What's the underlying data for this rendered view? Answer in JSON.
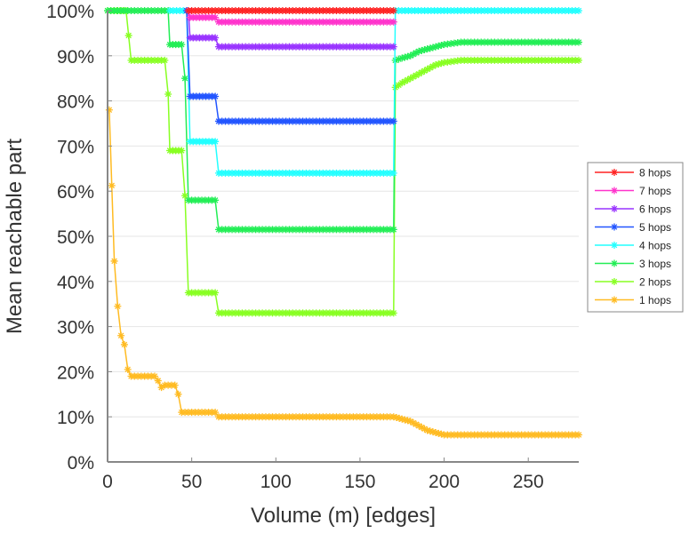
{
  "chart_data": {
    "type": "line",
    "title": "",
    "xlabel": "Volume (m) [edges]",
    "ylabel": "Mean reachable part",
    "xlim": [
      0,
      280
    ],
    "ylim": [
      0,
      100
    ],
    "x_ticks": [
      0,
      50,
      100,
      150,
      200,
      250
    ],
    "x_tick_labels": [
      "0",
      "50",
      "100",
      "150",
      "200",
      "250"
    ],
    "y_ticks": [
      0,
      10,
      20,
      30,
      40,
      50,
      60,
      70,
      80,
      90,
      100
    ],
    "y_tick_labels": [
      "0%",
      "10%",
      "20%",
      "30%",
      "40%",
      "50%",
      "60%",
      "70%",
      "80%",
      "90%",
      "100%"
    ],
    "grid": "horizontal",
    "legend_position": "right",
    "marker": "asterisk",
    "series": [
      {
        "name": "8 hops",
        "color": "#ff2222",
        "points": [
          [
            48,
            100
          ],
          [
            60,
            100
          ],
          [
            80,
            100
          ],
          [
            100,
            100
          ],
          [
            120,
            100
          ],
          [
            140,
            100
          ],
          [
            160,
            100
          ],
          [
            170,
            100
          ]
        ]
      },
      {
        "name": "7 hops",
        "color": "#ff33cc",
        "points": [
          [
            48,
            100
          ],
          [
            49,
            98.5
          ],
          [
            64,
            98.5
          ],
          [
            66,
            97.5
          ],
          [
            100,
            97.5
          ],
          [
            140,
            97.5
          ],
          [
            170,
            97.5
          ]
        ]
      },
      {
        "name": "6 hops",
        "color": "#9933ff",
        "points": [
          [
            48,
            100
          ],
          [
            49,
            94
          ],
          [
            64,
            94
          ],
          [
            66,
            92
          ],
          [
            100,
            92
          ],
          [
            140,
            92
          ],
          [
            170,
            92
          ]
        ]
      },
      {
        "name": "5 hops",
        "color": "#2255ff",
        "points": [
          [
            47,
            100
          ],
          [
            49,
            81
          ],
          [
            64,
            81
          ],
          [
            66,
            75.5
          ],
          [
            100,
            75.5
          ],
          [
            140,
            75.5
          ],
          [
            170,
            75.5
          ]
        ]
      },
      {
        "name": "4 hops",
        "color": "#22ffff",
        "points": [
          [
            37,
            100
          ],
          [
            47,
            100
          ],
          [
            49,
            71
          ],
          [
            64,
            71
          ],
          [
            66,
            64
          ],
          [
            100,
            64
          ],
          [
            140,
            64
          ],
          [
            170,
            64
          ],
          [
            171,
            100
          ],
          [
            200,
            100
          ],
          [
            240,
            100
          ],
          [
            280,
            100
          ]
        ]
      },
      {
        "name": "3 hops",
        "color": "#22ee55",
        "points": [
          [
            0,
            100
          ],
          [
            36,
            100
          ],
          [
            37,
            92.5
          ],
          [
            44,
            92.5
          ],
          [
            46,
            85
          ],
          [
            48,
            58
          ],
          [
            64,
            58
          ],
          [
            66,
            51.5
          ],
          [
            100,
            51.5
          ],
          [
            140,
            51.5
          ],
          [
            170,
            51.5
          ],
          [
            171,
            89
          ],
          [
            175,
            89.5
          ],
          [
            180,
            90
          ],
          [
            185,
            91
          ],
          [
            190,
            91.5
          ],
          [
            195,
            92
          ],
          [
            200,
            92.5
          ],
          [
            210,
            93
          ],
          [
            240,
            93
          ],
          [
            280,
            93
          ]
        ]
      },
      {
        "name": "2 hops",
        "color": "#88ff22",
        "points": [
          [
            0,
            100
          ],
          [
            11,
            100
          ],
          [
            14,
            89
          ],
          [
            34,
            89
          ],
          [
            36,
            81.5
          ],
          [
            37,
            69
          ],
          [
            44,
            69
          ],
          [
            46,
            59
          ],
          [
            48,
            37.5
          ],
          [
            64,
            37.5
          ],
          [
            66,
            33
          ],
          [
            100,
            33
          ],
          [
            140,
            33
          ],
          [
            170,
            33
          ],
          [
            171,
            83
          ],
          [
            175,
            84
          ],
          [
            180,
            85
          ],
          [
            185,
            86
          ],
          [
            190,
            87
          ],
          [
            195,
            88
          ],
          [
            200,
            88.5
          ],
          [
            210,
            89
          ],
          [
            240,
            89
          ],
          [
            280,
            89
          ]
        ]
      },
      {
        "name": "1 hops",
        "color": "#ffbb22",
        "points": [
          [
            1,
            78
          ],
          [
            4,
            44.5
          ],
          [
            6,
            34.5
          ],
          [
            8,
            28
          ],
          [
            10,
            26
          ],
          [
            12,
            20.5
          ],
          [
            14,
            19
          ],
          [
            28,
            19
          ],
          [
            30,
            18
          ],
          [
            32,
            16.5
          ],
          [
            34,
            17
          ],
          [
            40,
            17
          ],
          [
            42,
            15
          ],
          [
            44,
            11
          ],
          [
            64,
            11
          ],
          [
            66,
            10
          ],
          [
            100,
            10
          ],
          [
            140,
            10
          ],
          [
            170,
            10
          ],
          [
            175,
            9.5
          ],
          [
            180,
            9
          ],
          [
            185,
            8
          ],
          [
            190,
            7
          ],
          [
            195,
            6.5
          ],
          [
            200,
            6
          ],
          [
            240,
            6
          ],
          [
            280,
            6
          ]
        ]
      }
    ]
  }
}
